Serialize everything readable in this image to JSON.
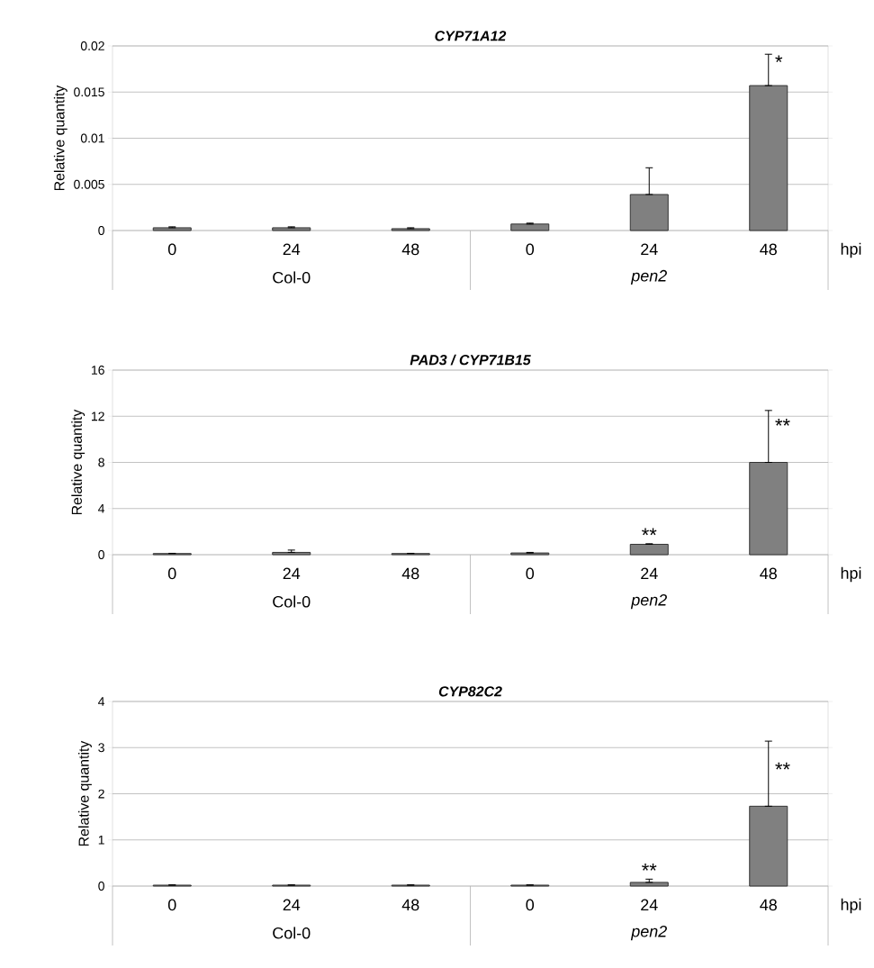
{
  "chart_data": [
    {
      "type": "bar",
      "title": "CYP71A12",
      "ylabel": "Relative quantity",
      "xlabel": "hpi",
      "categories": [
        "0",
        "24",
        "48",
        "0",
        "24",
        "48"
      ],
      "values": [
        0.0003,
        0.0003,
        0.0002,
        0.0007,
        0.0039,
        0.0157
      ],
      "errors": [
        [
          0.0003,
          0.0004
        ],
        [
          0.0003,
          0.0004
        ],
        [
          0.0002,
          0.0003
        ],
        [
          0.0007,
          0.0008
        ],
        [
          0.0039,
          0.0068
        ],
        [
          0.0157,
          0.0191
        ]
      ],
      "color": "#808080",
      "ylim": [
        0,
        0.02
      ],
      "yticks": [
        0,
        0.005,
        0.01,
        0.015,
        0.02
      ],
      "grid": "y",
      "value_labels": [
        null,
        null,
        null,
        null,
        null,
        "*"
      ],
      "annotations": [
        "Col-0",
        "*pen2*"
      ]
    },
    {
      "type": "bar",
      "title": "PAD3 / CYP71B15",
      "ylabel": "Relative quantity",
      "xlabel": "hpi",
      "categories": [
        "0",
        "24",
        "48",
        "0",
        "24",
        "48"
      ],
      "values": [
        0.1,
        0.2,
        0.1,
        0.15,
        0.9,
        8.0
      ],
      "errors": [
        [
          0.1,
          0.12
        ],
        [
          0.2,
          0.4
        ],
        [
          0.1,
          0.12
        ],
        [
          0.15,
          0.2
        ],
        [
          0.9,
          0.95
        ],
        [
          8.0,
          12.5
        ]
      ],
      "color": "#808080",
      "ylim": [
        0,
        16
      ],
      "yticks": [
        0,
        4,
        8,
        12,
        16
      ],
      "grid": "y",
      "value_labels": [
        null,
        null,
        null,
        null,
        "**",
        "**"
      ],
      "annotations": [
        "Col-0",
        "*pen2*"
      ]
    },
    {
      "type": "bar",
      "title": "CYP82C2",
      "ylabel": "Relative quantity",
      "xlabel": "hpi",
      "categories": [
        "0",
        "24",
        "48",
        "0",
        "24",
        "48"
      ],
      "values": [
        0.02,
        0.02,
        0.02,
        0.02,
        0.08,
        1.73
      ],
      "errors": [
        [
          0.02,
          0.025
        ],
        [
          0.02,
          0.025
        ],
        [
          0.02,
          0.025
        ],
        [
          0.02,
          0.025
        ],
        [
          0.08,
          0.15
        ],
        [
          1.73,
          3.14
        ]
      ],
      "color": "#808080",
      "ylim": [
        0,
        4
      ],
      "yticks": [
        0,
        1,
        2,
        3,
        4
      ],
      "grid": "y",
      "value_labels": [
        null,
        null,
        null,
        null,
        "**",
        "**"
      ],
      "annotations": [
        "Col-0",
        "*pen2*"
      ]
    }
  ]
}
